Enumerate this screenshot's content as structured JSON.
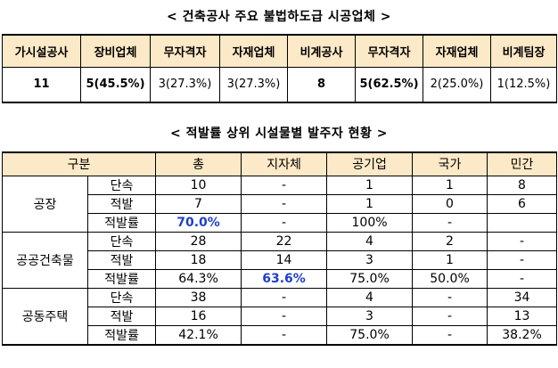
{
  "title1": "< 건축공사 주요 불법하도급 시공업체 >",
  "table1": {
    "headers": [
      "가시설공사",
      "장비업체",
      "무자격자",
      "자재업체",
      "비계공사",
      "무자격자",
      "자재업체",
      "비계팀장"
    ],
    "values": [
      {
        "main": "11",
        "pct": ""
      },
      {
        "main": "5",
        "pct": "(45.5%)"
      },
      {
        "main": "3",
        "pct": "(27.3%)"
      },
      {
        "main": "3",
        "pct": "(27.3%)"
      },
      {
        "main": "8",
        "pct": ""
      },
      {
        "main": "5",
        "pct": "(62.5%)"
      },
      {
        "main": "2",
        "pct": "(25.0%)"
      },
      {
        "main": "1",
        "pct": "(12.5%)"
      }
    ]
  },
  "title2": "< 적발률 상위 시설물별 발주자 현황 >",
  "table2": {
    "headers": [
      "구분",
      "총",
      "지자체",
      "공기업",
      "국가",
      "민간"
    ],
    "groups": [
      {
        "name": "공장",
        "rows": [
          {
            "label": "단속",
            "cells": [
              "10",
              "-",
              "1",
              "1",
              "8"
            ]
          },
          {
            "label": "적발",
            "cells": [
              "7",
              "-",
              "1",
              "0",
              "6"
            ]
          },
          {
            "label": "적발률",
            "cells": [
              "70.0%",
              "-",
              "100%",
              "-",
              ""
            ]
          }
        ]
      },
      {
        "name": "공공건축물",
        "rows": [
          {
            "label": "단속",
            "cells": [
              "28",
              "22",
              "4",
              "2",
              "-"
            ]
          },
          {
            "label": "적발",
            "cells": [
              "18",
              "14",
              "3",
              "1",
              "-"
            ]
          },
          {
            "label": "적발률",
            "cells": [
              "64.3%",
              "63.6%",
              "75.0%",
              "50.0%",
              "-"
            ]
          }
        ]
      },
      {
        "name": "공동주택",
        "rows": [
          {
            "label": "단속",
            "cells": [
              "38",
              "-",
              "4",
              "-",
              "34"
            ]
          },
          {
            "label": "적발",
            "cells": [
              "16",
              "-",
              "3",
              "-",
              "13"
            ]
          },
          {
            "label": "적발률",
            "cells": [
              "42.1%",
              "-",
              "75.0%",
              "-",
              "38.2%"
            ]
          }
        ]
      }
    ]
  },
  "colors": {
    "header_bg": "#fce9c7",
    "highlight": "#1f3fcf"
  }
}
